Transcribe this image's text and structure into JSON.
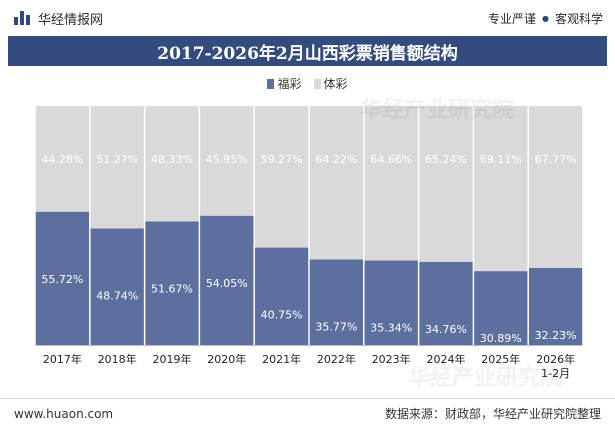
{
  "header": {
    "brand": "华经情报网",
    "tag_left": "专业严谨",
    "tag_right": "客观科学"
  },
  "footer": {
    "website": "www.huaon.com",
    "source": "数据来源：财政部，华经产业研究院整理"
  },
  "watermark": "华经产业研究院",
  "colors": {
    "welfare": "#5c6f9f",
    "sports": "#d9d9d9",
    "title_bg": "#344b7e"
  },
  "chart_data": {
    "type": "bar",
    "stacked": true,
    "percent": true,
    "title": "2017-2026年2月山西彩票销售额结构",
    "categories": [
      "2017年",
      "2018年",
      "2019年",
      "2020年",
      "2021年",
      "2022年",
      "2023年",
      "2024年",
      "2025年",
      "2026年 1-2月"
    ],
    "series": [
      {
        "name": "福彩",
        "color": "#5c6f9f",
        "labels": [
          "55.72%",
          "48.74%",
          "51.67%",
          "54.05%",
          "40.75%",
          "35.77%",
          "35.34%",
          "34.76%",
          "30.89%",
          "32.23%"
        ],
        "values": [
          55.72,
          48.74,
          51.67,
          54.05,
          40.75,
          35.77,
          35.34,
          34.76,
          30.89,
          32.23
        ]
      },
      {
        "name": "体彩",
        "color": "#d9d9d9",
        "labels": [
          "44.28%",
          "51.27%",
          "48.33%",
          "45.95%",
          "59.27%",
          "64.22%",
          "64.66%",
          "65.24%",
          "69.11%",
          "67.77%"
        ],
        "values": [
          44.28,
          51.27,
          48.33,
          45.95,
          59.27,
          64.22,
          64.66,
          65.24,
          69.11,
          67.77
        ]
      }
    ],
    "ylim": [
      0,
      100
    ],
    "legend_position": "top-center",
    "grid": false
  }
}
